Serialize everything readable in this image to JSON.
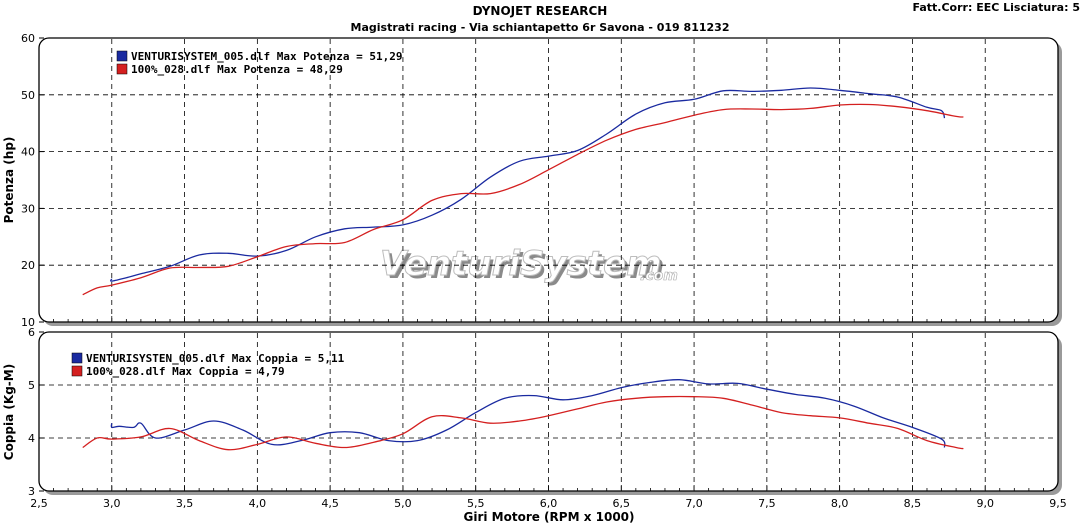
{
  "header": {
    "title": "DYNOJET RESEARCH",
    "subtitle": "Magistrati racing - Via schiantapetto 6r Savona - 019 811232",
    "corner": "Fatt.Corr: EEC  Lisciatura: 5"
  },
  "watermark": {
    "text": "VenturiSystem",
    "suffix": ".com"
  },
  "colors": {
    "blue": "#1a2aa0",
    "red": "#d42020",
    "grid": "#000000"
  },
  "chart_data": [
    {
      "type": "line",
      "ylabel": "Potenza (hp)",
      "ylim": [
        10,
        60
      ],
      "yticks": [
        "10",
        "20",
        "30",
        "40",
        "50",
        "60"
      ],
      "xlim": [
        2.5,
        9.5
      ],
      "grid": true,
      "legend": "top-left",
      "legend_entries": [
        "VENTURISYSTEM_005.dlf Max Potenza = 51,29",
        "100%_028.dlf Max Potenza = 48,29"
      ],
      "series": [
        {
          "color": "#1a2aa0",
          "x": [
            3.0,
            3.0,
            3.1,
            3.2,
            3.4,
            3.6,
            3.8,
            4.0,
            4.2,
            4.4,
            4.6,
            4.8,
            5.0,
            5.2,
            5.4,
            5.6,
            5.8,
            6.0,
            6.2,
            6.4,
            6.6,
            6.8,
            7.0,
            7.2,
            7.4,
            7.6,
            7.8,
            8.0,
            8.2,
            8.4,
            8.6,
            8.7,
            8.72
          ],
          "y": [
            17.6,
            17.2,
            17.8,
            18.5,
            19.8,
            21.8,
            22.1,
            21.6,
            22.6,
            25.0,
            26.4,
            26.7,
            27.1,
            28.8,
            31.6,
            35.5,
            38.3,
            39.2,
            40.2,
            43.1,
            46.6,
            48.6,
            49.2,
            50.7,
            50.6,
            50.8,
            51.2,
            50.8,
            50.2,
            49.6,
            47.8,
            47.2,
            45.9
          ]
        },
        {
          "color": "#d42020",
          "x": [
            2.8,
            2.9,
            3.0,
            3.2,
            3.4,
            3.6,
            3.8,
            4.0,
            4.2,
            4.4,
            4.6,
            4.8,
            5.0,
            5.2,
            5.4,
            5.6,
            5.8,
            6.0,
            6.2,
            6.4,
            6.6,
            6.8,
            7.0,
            7.2,
            7.4,
            7.6,
            7.8,
            8.0,
            8.2,
            8.4,
            8.6,
            8.8,
            8.85
          ],
          "y": [
            14.8,
            16.0,
            16.5,
            17.8,
            19.5,
            19.6,
            19.8,
            21.5,
            23.3,
            23.8,
            24.0,
            26.3,
            28.0,
            31.4,
            32.6,
            32.6,
            34.2,
            36.8,
            39.5,
            42.0,
            43.9,
            45.1,
            46.4,
            47.4,
            47.5,
            47.4,
            47.6,
            48.2,
            48.3,
            47.9,
            47.2,
            46.2,
            46.1
          ]
        }
      ]
    },
    {
      "type": "line",
      "ylabel": "Coppia (Kg-M)",
      "xlabel": "Giri Motore (RPM x 1000)",
      "ylim": [
        3,
        6
      ],
      "yticks": [
        "3",
        "4",
        "5",
        "6"
      ],
      "xlim": [
        2.5,
        9.5
      ],
      "xticks": [
        "2,5",
        "3,0",
        "3,5",
        "4,0",
        "4,5",
        "5,0",
        "5,5",
        "6,0",
        "6,5",
        "7,0",
        "7,5",
        "8,0",
        "8,5",
        "9,0",
        "9,5"
      ],
      "grid": true,
      "legend": "top-left",
      "legend_entries": [
        "VENTURISYSTEN_005.dlf Max Coppia = 5,11",
        "100%_028.dlf Max Coppia = 4,79"
      ],
      "series": [
        {
          "color": "#1a2aa0",
          "x": [
            3.0,
            3.0,
            3.05,
            3.15,
            3.2,
            3.3,
            3.5,
            3.7,
            3.9,
            4.1,
            4.3,
            4.5,
            4.7,
            4.9,
            5.1,
            5.3,
            5.5,
            5.7,
            5.9,
            6.1,
            6.3,
            6.5,
            6.7,
            6.9,
            7.1,
            7.3,
            7.5,
            7.7,
            7.9,
            8.1,
            8.3,
            8.5,
            8.7,
            8.72
          ],
          "y": [
            4.28,
            4.2,
            4.22,
            4.2,
            4.28,
            4.0,
            4.15,
            4.32,
            4.15,
            3.88,
            3.95,
            4.1,
            4.1,
            3.95,
            3.95,
            4.15,
            4.48,
            4.75,
            4.8,
            4.72,
            4.8,
            4.95,
            5.05,
            5.1,
            5.02,
            5.03,
            4.92,
            4.82,
            4.75,
            4.6,
            4.38,
            4.2,
            3.98,
            3.82
          ]
        },
        {
          "color": "#d42020",
          "x": [
            2.8,
            2.9,
            3.0,
            3.2,
            3.4,
            3.6,
            3.8,
            4.0,
            4.2,
            4.4,
            4.6,
            4.8,
            5.0,
            5.2,
            5.4,
            5.6,
            5.8,
            6.0,
            6.2,
            6.4,
            6.6,
            6.8,
            7.0,
            7.2,
            7.4,
            7.6,
            7.8,
            8.0,
            8.2,
            8.4,
            8.6,
            8.8,
            8.85
          ],
          "y": [
            3.82,
            4.0,
            3.98,
            4.02,
            4.18,
            3.95,
            3.78,
            3.88,
            4.02,
            3.9,
            3.82,
            3.92,
            4.08,
            4.4,
            4.38,
            4.28,
            4.32,
            4.42,
            4.55,
            4.68,
            4.75,
            4.78,
            4.78,
            4.75,
            4.62,
            4.48,
            4.42,
            4.38,
            4.28,
            4.18,
            3.95,
            3.82,
            3.8
          ]
        }
      ]
    }
  ]
}
